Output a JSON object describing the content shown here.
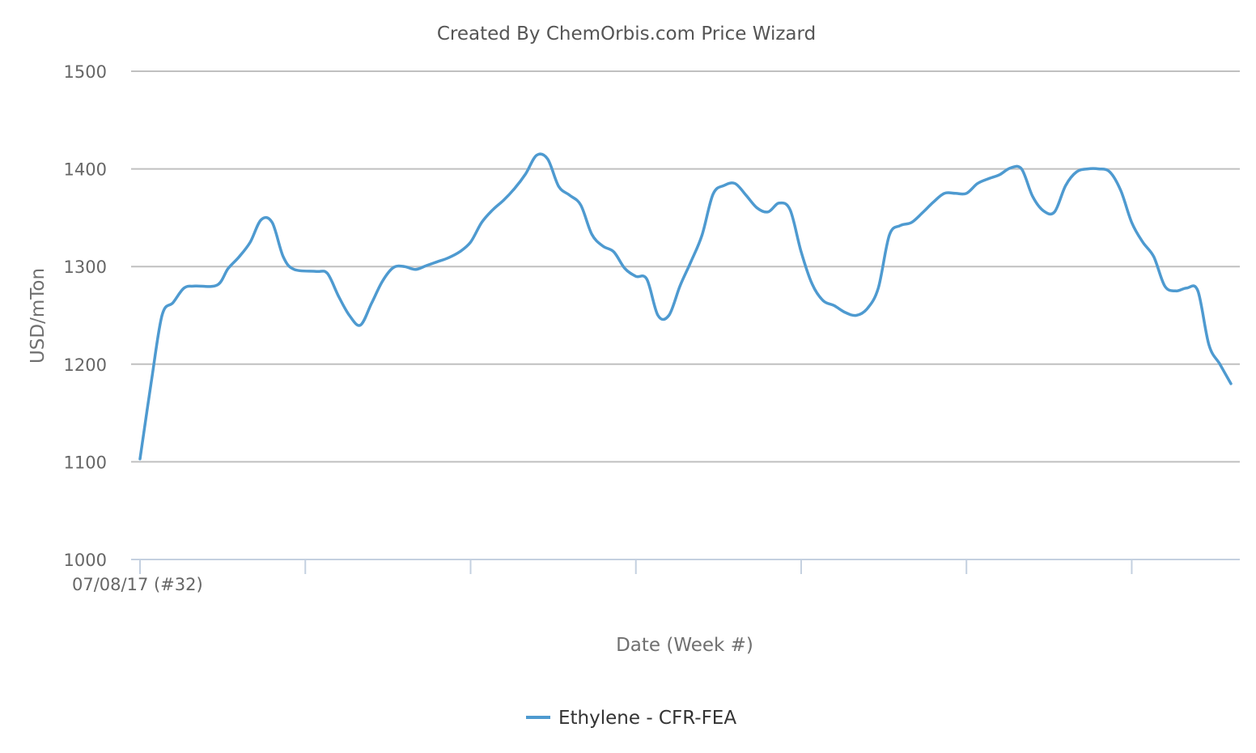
{
  "chart_data": {
    "type": "line",
    "title": "Created By ChemOrbis.com Price Wizard",
    "xlabel": "Date (Week #)",
    "ylabel": "USD/mTon",
    "ylim": [
      1000,
      1500
    ],
    "yticks": [
      "1500",
      "1400",
      "1300",
      "1200",
      "1100",
      "1000"
    ],
    "x_axis_type": "week",
    "x_labels": [
      {
        "week_index": 0,
        "label": "07/08/17 (#32)"
      }
    ],
    "x_tick_weeks": [
      0,
      15,
      30,
      45,
      60,
      75,
      90,
      105
    ],
    "grid": true,
    "legend_position": "bottom-center",
    "series": [
      {
        "name": "Ethylene - CFR-FEA",
        "color": "#4e9ad0",
        "points": [
          [
            0,
            1103
          ],
          [
            1,
            1180
          ],
          [
            2,
            1250
          ],
          [
            3,
            1263
          ],
          [
            4,
            1278
          ],
          [
            5,
            1280
          ],
          [
            7,
            1281
          ],
          [
            8,
            1298
          ],
          [
            9,
            1310
          ],
          [
            10,
            1325
          ],
          [
            11,
            1348
          ],
          [
            12,
            1345
          ],
          [
            13,
            1310
          ],
          [
            14,
            1297
          ],
          [
            16,
            1295
          ],
          [
            17,
            1293
          ],
          [
            18,
            1270
          ],
          [
            19,
            1250
          ],
          [
            20,
            1240
          ],
          [
            21,
            1262
          ],
          [
            22,
            1285
          ],
          [
            23,
            1299
          ],
          [
            24,
            1300
          ],
          [
            25,
            1297
          ],
          [
            26,
            1301
          ],
          [
            27,
            1305
          ],
          [
            28,
            1309
          ],
          [
            29,
            1315
          ],
          [
            30,
            1325
          ],
          [
            31,
            1345
          ],
          [
            32,
            1358
          ],
          [
            33,
            1368
          ],
          [
            34,
            1380
          ],
          [
            35,
            1395
          ],
          [
            36,
            1414
          ],
          [
            37,
            1410
          ],
          [
            38,
            1382
          ],
          [
            39,
            1373
          ],
          [
            40,
            1363
          ],
          [
            41,
            1333
          ],
          [
            42,
            1321
          ],
          [
            43,
            1315
          ],
          [
            44,
            1298
          ],
          [
            45,
            1290
          ],
          [
            46,
            1287
          ],
          [
            47,
            1250
          ],
          [
            48,
            1250
          ],
          [
            49,
            1280
          ],
          [
            50,
            1305
          ],
          [
            51,
            1332
          ],
          [
            52,
            1374
          ],
          [
            53,
            1383
          ],
          [
            54,
            1385
          ],
          [
            55,
            1373
          ],
          [
            56,
            1360
          ],
          [
            57,
            1356
          ],
          [
            58,
            1365
          ],
          [
            59,
            1358
          ],
          [
            60,
            1315
          ],
          [
            61,
            1282
          ],
          [
            62,
            1265
          ],
          [
            63,
            1260
          ],
          [
            64,
            1253
          ],
          [
            65,
            1250
          ],
          [
            66,
            1257
          ],
          [
            67,
            1278
          ],
          [
            68,
            1332
          ],
          [
            69,
            1342
          ],
          [
            70,
            1345
          ],
          [
            71,
            1355
          ],
          [
            72,
            1366
          ],
          [
            73,
            1375
          ],
          [
            74,
            1375
          ],
          [
            75,
            1375
          ],
          [
            76,
            1385
          ],
          [
            77,
            1390
          ],
          [
            78,
            1394
          ],
          [
            79,
            1401
          ],
          [
            80,
            1400
          ],
          [
            81,
            1372
          ],
          [
            82,
            1357
          ],
          [
            83,
            1356
          ],
          [
            84,
            1383
          ],
          [
            85,
            1397
          ],
          [
            86,
            1400
          ],
          [
            87,
            1400
          ],
          [
            88,
            1397
          ],
          [
            89,
            1378
          ],
          [
            90,
            1345
          ],
          [
            91,
            1325
          ],
          [
            92,
            1310
          ],
          [
            93,
            1280
          ],
          [
            94,
            1275
          ],
          [
            95,
            1278
          ],
          [
            96,
            1275
          ],
          [
            97,
            1220
          ],
          [
            98,
            1200
          ],
          [
            99,
            1180
          ]
        ]
      }
    ]
  }
}
